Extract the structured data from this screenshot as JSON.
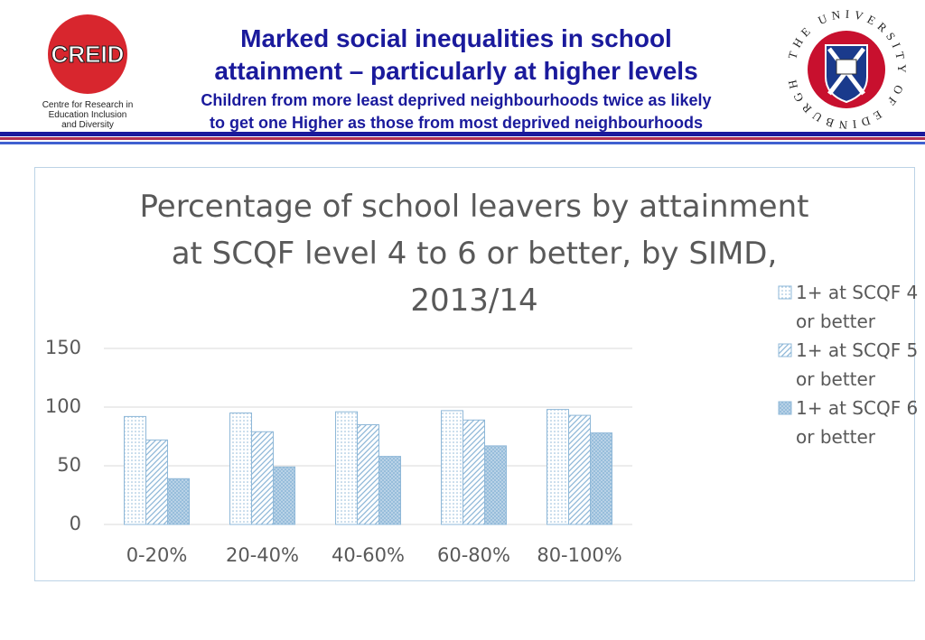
{
  "header": {
    "title": [
      "Marked social inequalities in school",
      "attainment – particularly at higher levels"
    ],
    "subtitle": [
      "Children from more least deprived neighbourhoods twice as likely",
      "to get one Higher as those from most deprived neighbourhoods"
    ],
    "left_logo": {
      "name": "CREID",
      "caption": [
        "Centre for Research in",
        "Education Inclusion",
        "and Diversity"
      ]
    },
    "right_logo": {
      "ring": "THE UNIVERSITY OF EDINBURGH"
    }
  },
  "chart_data": {
    "type": "bar",
    "title": [
      "Percentage of school leavers by attainment",
      "at SCQF level 4 to 6 or better, by SIMD,",
      "2013/14"
    ],
    "categories": [
      "0-20%",
      "20-40%",
      "40-60%",
      "60-80%",
      "80-100%"
    ],
    "series": [
      {
        "name": "1+ at SCQF 4 or better",
        "color": "#8fb8d8",
        "pattern": "dots",
        "values": [
          92,
          95,
          96,
          97,
          98
        ]
      },
      {
        "name": "1+ at SCQF 5 or better",
        "color": "#8fb8d8",
        "pattern": "hatch",
        "values": [
          72,
          79,
          85,
          89,
          93
        ]
      },
      {
        "name": "1+ at SCQF 6 or better",
        "color": "#8fb8d8",
        "pattern": "crosshatch",
        "values": [
          39,
          49,
          58,
          67,
          78
        ]
      }
    ],
    "ylim": [
      0,
      150
    ],
    "yticks": [
      0,
      50,
      100,
      150
    ],
    "grid": true,
    "legend": "right"
  }
}
